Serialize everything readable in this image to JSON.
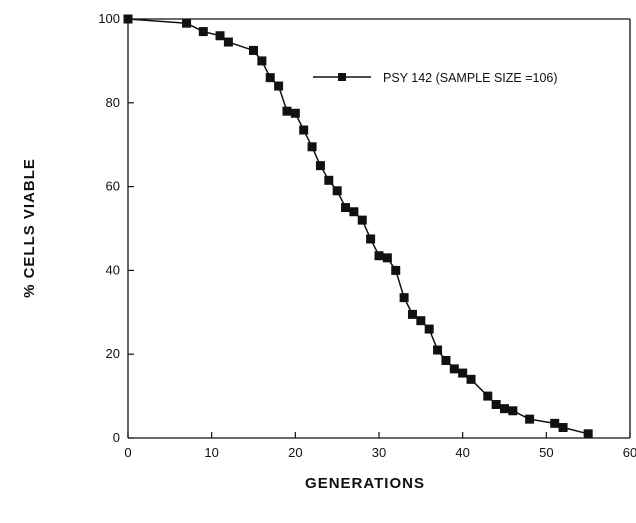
{
  "chart_data": {
    "type": "line",
    "title": "",
    "xlabel": "GENERATIONS",
    "ylabel": "% CELLS VIABLE",
    "xlim": [
      0,
      60
    ],
    "ylim": [
      0,
      100
    ],
    "x_ticks": [
      0,
      10,
      20,
      30,
      40,
      50,
      60
    ],
    "y_ticks": [
      0,
      20,
      40,
      60,
      80,
      100
    ],
    "x_tick_labels": [
      "0",
      "10",
      "20",
      "30",
      "40",
      "50",
      "60"
    ],
    "y_tick_labels": [
      "0",
      "20",
      "40",
      "60",
      "80",
      "100"
    ],
    "grid": false,
    "legend_position": "top-right",
    "series": [
      {
        "name": "PSY 142 (SAMPLE SIZE =106)",
        "color": "#111111",
        "marker": "square",
        "points": [
          [
            0,
            100
          ],
          [
            7,
            99
          ],
          [
            9,
            97
          ],
          [
            11,
            96
          ],
          [
            12,
            94.5
          ],
          [
            15,
            92.5
          ],
          [
            16,
            90
          ],
          [
            17,
            86
          ],
          [
            18,
            84
          ],
          [
            19,
            78
          ],
          [
            20,
            77.5
          ],
          [
            21,
            73.5
          ],
          [
            22,
            69.5
          ],
          [
            23,
            65
          ],
          [
            24,
            61.5
          ],
          [
            25,
            59
          ],
          [
            26,
            55
          ],
          [
            27,
            54
          ],
          [
            28,
            52
          ],
          [
            29,
            47.5
          ],
          [
            30,
            43.5
          ],
          [
            31,
            43
          ],
          [
            32,
            40
          ],
          [
            33,
            33.5
          ],
          [
            34,
            29.5
          ],
          [
            35,
            28
          ],
          [
            36,
            26
          ],
          [
            37,
            21
          ],
          [
            38,
            18.5
          ],
          [
            39,
            16.5
          ],
          [
            40,
            15.5
          ],
          [
            41,
            14
          ],
          [
            43,
            10
          ],
          [
            44,
            8
          ],
          [
            45,
            7
          ],
          [
            46,
            6.5
          ],
          [
            48,
            4.5
          ],
          [
            51,
            3.5
          ],
          [
            52,
            2.5
          ],
          [
            55,
            1
          ]
        ]
      }
    ]
  }
}
